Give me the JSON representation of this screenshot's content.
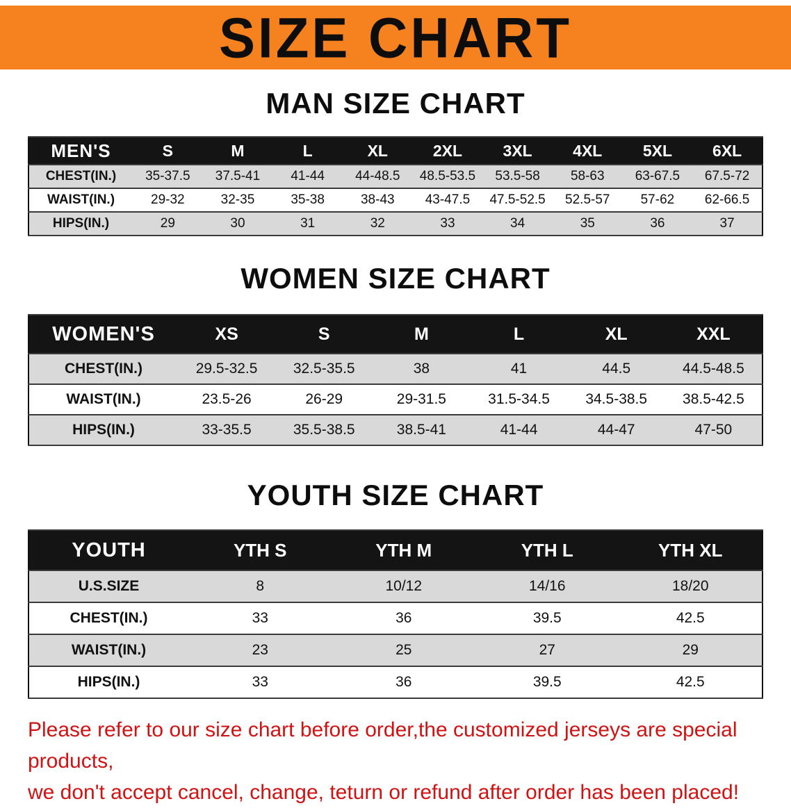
{
  "banner": {
    "title": "SIZE CHART",
    "bg_color": "#f5821f",
    "text_color": "#0d0d0d"
  },
  "colors": {
    "header_bg": "#141414",
    "stripe_gray": "#d9d9d9",
    "disclaimer_red": "#d11212"
  },
  "sections": {
    "men": {
      "heading": "MAN SIZE CHART",
      "table": {
        "label": "MEN'S",
        "columns": [
          "S",
          "M",
          "L",
          "XL",
          "2XL",
          "3XL",
          "4XL",
          "5XL",
          "6XL"
        ],
        "rows": [
          {
            "label": "CHEST(IN.)",
            "cells": [
              "35-37.5",
              "37.5-41",
              "41-44",
              "44-48.5",
              "48.5-53.5",
              "53.5-58",
              "58-63",
              "63-67.5",
              "67.5-72"
            ]
          },
          {
            "label": "WAIST(IN.)",
            "cells": [
              "29-32",
              "32-35",
              "35-38",
              "38-43",
              "43-47.5",
              "47.5-52.5",
              "52.5-57",
              "57-62",
              "62-66.5"
            ]
          },
          {
            "label": "HIPS(IN.)",
            "cells": [
              "29",
              "30",
              "31",
              "32",
              "33",
              "34",
              "35",
              "36",
              "37"
            ]
          }
        ]
      }
    },
    "women": {
      "heading": "WOMEN SIZE CHART",
      "table": {
        "label": "WOMEN'S",
        "columns": [
          "XS",
          "S",
          "M",
          "L",
          "XL",
          "XXL"
        ],
        "rows": [
          {
            "label": "CHEST(IN.)",
            "cells": [
              "29.5-32.5",
              "32.5-35.5",
              "38",
              "41",
              "44.5",
              "44.5-48.5"
            ]
          },
          {
            "label": "WAIST(IN.)",
            "cells": [
              "23.5-26",
              "26-29",
              "29-31.5",
              "31.5-34.5",
              "34.5-38.5",
              "38.5-42.5"
            ]
          },
          {
            "label": "HIPS(IN.)",
            "cells": [
              "33-35.5",
              "35.5-38.5",
              "38.5-41",
              "41-44",
              "44-47",
              "47-50"
            ]
          }
        ]
      }
    },
    "youth": {
      "heading": "YOUTH SIZE CHART",
      "table": {
        "label": "YOUTH",
        "columns": [
          "YTH S",
          "YTH M",
          "YTH L",
          "YTH XL"
        ],
        "rows": [
          {
            "label": "U.S.SIZE",
            "cells": [
              "8",
              "10/12",
              "14/16",
              "18/20"
            ]
          },
          {
            "label": "CHEST(IN.)",
            "cells": [
              "33",
              "36",
              "39.5",
              "42.5"
            ]
          },
          {
            "label": "WAIST(IN.)",
            "cells": [
              "23",
              "25",
              "27",
              "29"
            ]
          },
          {
            "label": "HIPS(IN.)",
            "cells": [
              "33",
              "36",
              "39.5",
              "42.5"
            ]
          }
        ]
      }
    }
  },
  "disclaimer": {
    "line1": "Please refer to our size chart before order,the customized jerseys are special products,",
    "line2": "we don't accept cancel, change, teturn or refund after order has been placed!"
  }
}
